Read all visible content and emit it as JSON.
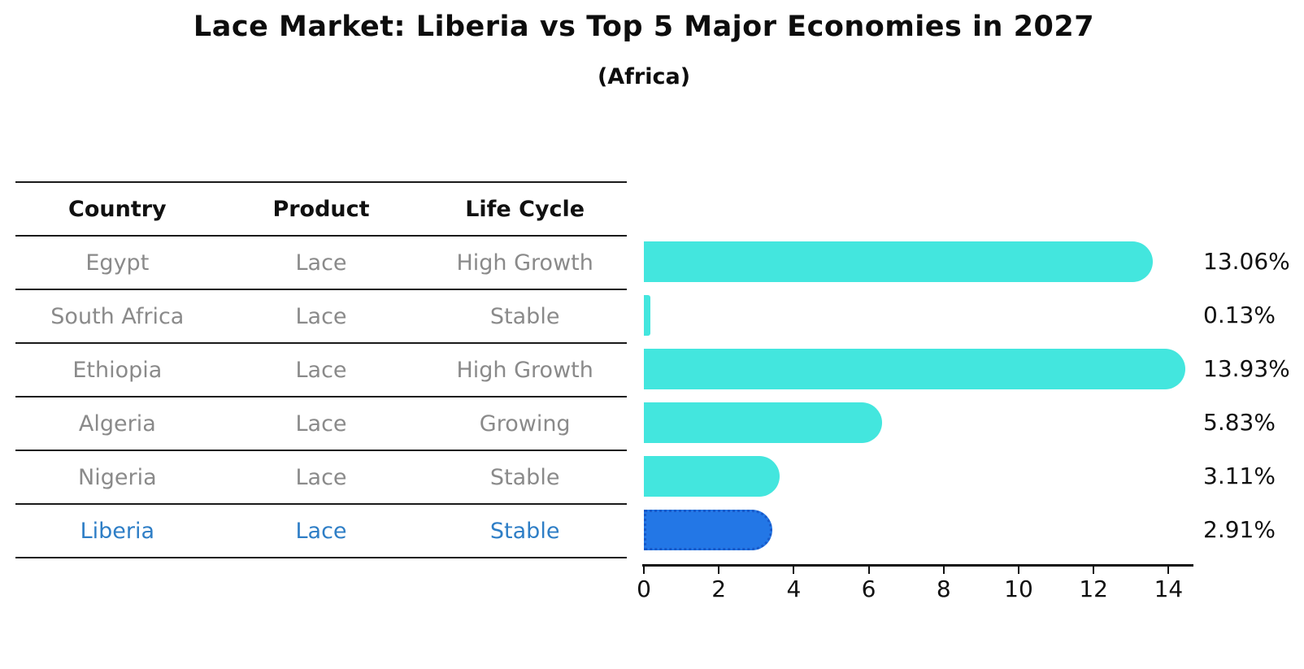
{
  "title": "Lace Market: Liberia vs Top 5 Major Economies in 2027",
  "subtitle": "(Africa)",
  "table": {
    "headers": [
      "Country",
      "Product",
      "Life Cycle"
    ],
    "rows": [
      {
        "country": "Egypt",
        "product": "Lace",
        "life_cycle": "High Growth",
        "highlight": false
      },
      {
        "country": "South Africa",
        "product": "Lace",
        "life_cycle": "Stable",
        "highlight": false
      },
      {
        "country": "Ethiopia",
        "product": "Lace",
        "life_cycle": "High Growth",
        "highlight": false
      },
      {
        "country": "Algeria",
        "product": "Lace",
        "life_cycle": "Growing",
        "highlight": false
      },
      {
        "country": "Nigeria",
        "product": "Lace",
        "life_cycle": "Stable",
        "highlight": false
      },
      {
        "country": "Liberia",
        "product": "Lace",
        "life_cycle": "Stable",
        "highlight": true
      }
    ]
  },
  "chart_data": {
    "type": "bar",
    "orientation": "horizontal",
    "title": "Lace Market: Liberia vs Top 5 Major Economies in 2027",
    "subtitle": "(Africa)",
    "categories": [
      "Egypt",
      "South Africa",
      "Ethiopia",
      "Algeria",
      "Nigeria",
      "Liberia"
    ],
    "values": [
      13.06,
      0.13,
      13.93,
      5.83,
      3.11,
      2.91
    ],
    "value_labels": [
      "13.06%",
      "0.13%",
      "13.93%",
      "5.83%",
      "3.11%",
      "2.91%"
    ],
    "highlight_index": 5,
    "x_ticks": [
      0,
      2,
      4,
      6,
      8,
      10,
      12,
      14
    ],
    "x_tick_labels": [
      "0",
      "2",
      "4",
      "6",
      "8",
      "10",
      "12",
      "14"
    ],
    "xlim": [
      0,
      14.6
    ],
    "xlabel": "",
    "ylabel": "",
    "grid": false,
    "legend": false
  },
  "colors": {
    "bar": "#43e6de",
    "highlight_bar": "#2377e6",
    "highlight_bar_border": "#1759c9",
    "highlight_text": "#2e7ec6",
    "body_text": "#8a8a8a",
    "heading_text": "#111111",
    "line": "#1a1a1a"
  }
}
